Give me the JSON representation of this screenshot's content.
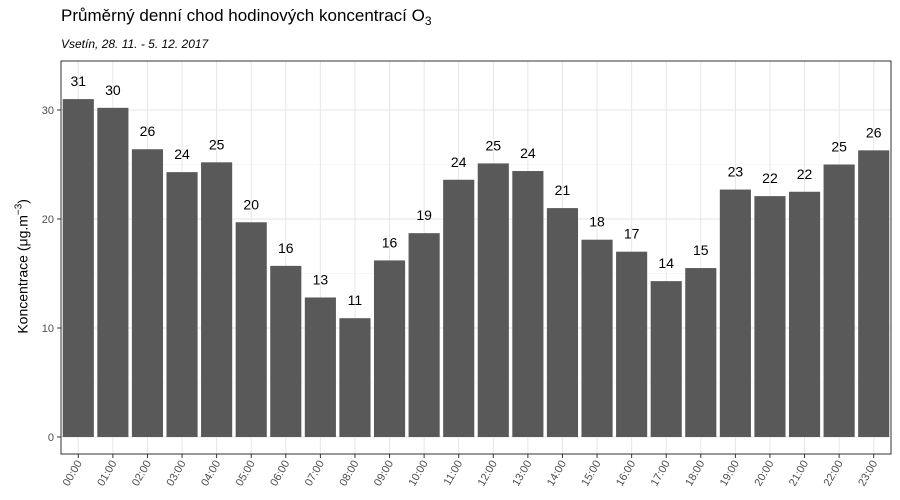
{
  "chart_data": {
    "type": "bar",
    "title": "Průměrný denní chod hodinových koncentrací O",
    "title_subscript": "3",
    "subtitle": "Vsetín, 28. 11. - 5. 12. 2017",
    "ylabel": "Koncentrace  (μg.m",
    "ylabel_superscript": "−3",
    "ylabel_suffix": ")",
    "xlabel": "",
    "ylim": [
      0,
      35
    ],
    "yticks": [
      0,
      10,
      20,
      30
    ],
    "grid": true,
    "bar_color": "#595959",
    "categories": [
      "00:00",
      "01:00",
      "02:00",
      "03:00",
      "04:00",
      "05:00",
      "06:00",
      "07:00",
      "08:00",
      "09:00",
      "10:00",
      "11:00",
      "12:00",
      "13:00",
      "14:00",
      "15:00",
      "16:00",
      "17:00",
      "18:00",
      "19:00",
      "20:00",
      "21:00",
      "22:00",
      "23:00"
    ],
    "values": [
      31.0,
      30.2,
      26.4,
      24.3,
      25.2,
      19.7,
      15.7,
      12.8,
      10.9,
      16.2,
      18.7,
      23.6,
      25.1,
      24.4,
      21.0,
      18.1,
      17.0,
      14.3,
      15.5,
      22.7,
      22.1,
      22.5,
      25.0,
      26.3
    ],
    "data_labels": [
      "31",
      "30",
      "26",
      "24",
      "25",
      "20",
      "16",
      "13",
      "11",
      "16",
      "19",
      "24",
      "25",
      "24",
      "21",
      "18",
      "17",
      "14",
      "15",
      "23",
      "22",
      "22",
      "25",
      "26"
    ]
  }
}
